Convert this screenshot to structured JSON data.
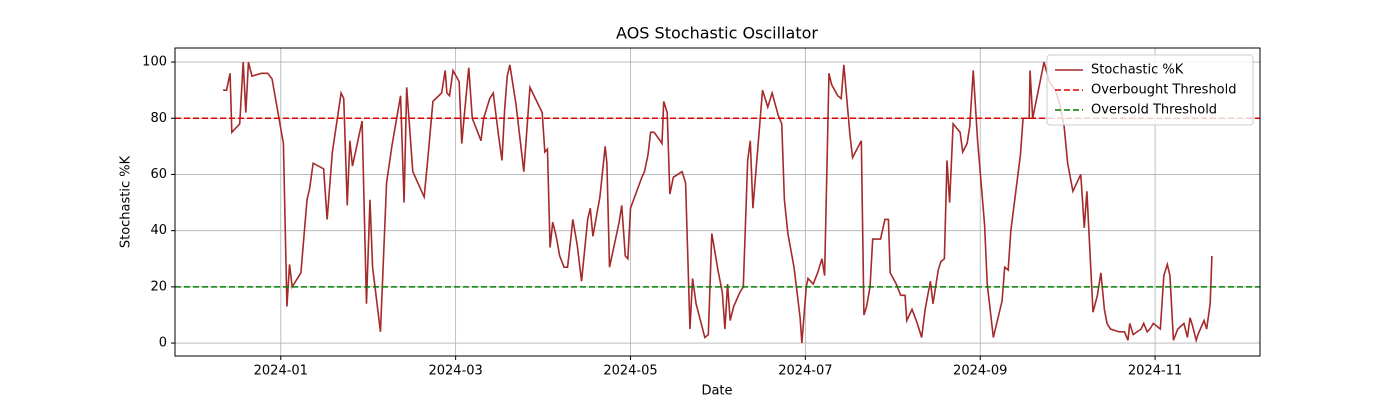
{
  "chart_data": {
    "type": "line",
    "title": "AOS Stochastic Oscillator",
    "x_label": "Date",
    "y_label": "Stochastic %K",
    "x": [
      -0.66,
      -0.62,
      -0.58,
      -0.56,
      -0.47,
      -0.43,
      -0.4,
      -0.37,
      -0.33,
      -0.22,
      -0.15,
      -0.1,
      0.03,
      0.07,
      0.1,
      0.13,
      0.23,
      0.3,
      0.33,
      0.37,
      0.49,
      0.53,
      0.59,
      0.69,
      0.72,
      0.76,
      0.79,
      0.82,
      0.93,
      0.98,
      1.02,
      1.05,
      1.14,
      1.21,
      1.27,
      1.37,
      1.41,
      1.44,
      1.51,
      1.64,
      1.68,
      1.74,
      1.84,
      1.88,
      1.9,
      1.93,
      1.97,
      2.04,
      2.07,
      2.09,
      2.15,
      2.19,
      2.29,
      2.32,
      2.39,
      2.43,
      2.49,
      2.53,
      2.56,
      2.59,
      2.62,
      2.69,
      2.78,
      2.85,
      2.99,
      3.02,
      3.05,
      3.08,
      3.11,
      3.15,
      3.19,
      3.24,
      3.28,
      3.32,
      3.34,
      3.39,
      3.44,
      3.51,
      3.54,
      3.57,
      3.65,
      3.71,
      3.73,
      3.76,
      3.87,
      3.9,
      3.94,
      3.97,
      4.0,
      4.13,
      4.16,
      4.2,
      4.23,
      4.27,
      4.34,
      4.36,
      4.38,
      4.42,
      4.45,
      4.49,
      4.59,
      4.63,
      4.68,
      4.71,
      4.75,
      4.85,
      4.89,
      4.93,
      5.0,
      5.05,
      5.08,
      5.11,
      5.14,
      5.18,
      5.25,
      5.29,
      5.34,
      5.37,
      5.4,
      5.51,
      5.57,
      5.62,
      5.69,
      5.73,
      5.76,
      5.8,
      5.87,
      5.94,
      5.96,
      6.01,
      6.03,
      6.09,
      6.14,
      6.19,
      6.22,
      6.27,
      6.3,
      6.37,
      6.41,
      6.44,
      6.51,
      6.54,
      6.64,
      6.67,
      6.7,
      6.74,
      6.77,
      6.86,
      6.91,
      6.95,
      6.97,
      7.04,
      7.09,
      7.14,
      7.16,
      7.22,
      7.28,
      7.33,
      7.37,
      7.43,
      7.46,
      7.52,
      7.55,
      7.59,
      7.62,
      7.65,
      7.69,
      7.77,
      7.8,
      7.85,
      7.88,
      7.92,
      7.97,
      8.05,
      8.08,
      8.15,
      8.25,
      8.28,
      8.32,
      8.35,
      8.46,
      8.49,
      8.56,
      8.57,
      8.6,
      8.73,
      8.79,
      8.86,
      8.91,
      8.96,
      9.0,
      9.06,
      9.15,
      9.19,
      9.22,
      9.29,
      9.34,
      9.38,
      9.42,
      9.45,
      9.49,
      9.59,
      9.65,
      9.69,
      9.71,
      9.75,
      9.84,
      9.87,
      9.91,
      9.94,
      9.98,
      10.06,
      10.1,
      10.14,
      10.17,
      10.21,
      10.26,
      10.33,
      10.37,
      10.4,
      10.43,
      10.47,
      10.49,
      10.56,
      10.59,
      10.63,
      10.65
    ],
    "series": [
      {
        "name": "Stochastic %K",
        "color": "#a52a2a",
        "values": [
          90,
          90,
          96,
          75,
          78,
          100,
          82,
          100,
          95,
          96,
          96,
          94,
          71,
          13,
          28,
          20,
          25,
          51,
          55,
          64,
          62,
          44,
          68,
          89,
          87,
          49,
          72,
          63,
          79,
          14,
          51,
          27,
          4,
          57,
          70,
          88,
          50,
          91,
          61,
          52,
          65,
          86,
          89,
          97,
          89,
          88,
          97,
          93,
          71,
          78,
          98,
          80,
          72,
          80,
          87,
          89,
          74,
          65,
          83,
          95,
          99,
          85,
          61,
          91,
          82,
          68,
          69,
          34,
          43,
          38,
          31,
          27,
          27,
          38,
          44,
          35,
          22,
          44,
          48,
          38,
          52,
          70,
          64,
          27,
          43,
          49,
          31,
          30,
          48,
          59,
          61,
          67,
          75,
          75,
          72,
          71,
          86,
          82,
          53,
          59,
          61,
          57,
          5,
          23,
          14,
          2,
          3,
          39,
          26,
          18,
          5,
          21,
          8,
          13,
          18,
          20,
          65,
          72,
          48,
          90,
          84,
          89,
          81,
          78,
          51,
          39,
          27,
          9,
          0,
          20,
          23,
          21,
          25,
          30,
          24,
          96,
          92,
          88,
          87,
          99,
          74,
          66,
          72,
          10,
          13,
          20,
          37,
          37,
          44,
          44,
          25,
          21,
          17,
          17,
          8,
          12,
          7,
          2,
          12,
          22,
          14,
          26,
          29,
          30,
          65,
          50,
          78,
          75,
          68,
          71,
          77,
          97,
          72,
          42,
          21,
          2,
          15,
          27,
          26,
          40,
          67,
          80,
          80,
          97,
          80,
          100,
          93,
          90,
          85,
          77,
          64,
          54,
          60,
          41,
          54,
          11,
          17,
          25,
          12,
          7,
          5,
          4,
          4,
          1,
          7,
          3,
          5,
          7,
          4,
          5,
          7,
          5,
          24,
          28,
          24,
          1,
          5,
          7,
          2,
          9,
          6,
          1,
          3,
          8,
          5,
          14,
          31
        ]
      }
    ],
    "hlines": [
      {
        "name": "Overbought Threshold",
        "value": 80,
        "color": "#e00000"
      },
      {
        "name": "Oversold Threshold",
        "value": 20,
        "color": "#008000"
      }
    ],
    "xlim": [
      -1.21,
      11.2
    ],
    "xticks": [
      {
        "value": 0,
        "label": "2024-01"
      },
      {
        "value": 2,
        "label": "2024-03"
      },
      {
        "value": 4,
        "label": "2024-05"
      },
      {
        "value": 6,
        "label": "2024-07"
      },
      {
        "value": 8,
        "label": "2024-09"
      },
      {
        "value": 10,
        "label": "2024-11"
      }
    ],
    "ylim": [
      -4.6,
      105
    ],
    "yticks": [
      0,
      20,
      40,
      60,
      80,
      100
    ],
    "grid": true,
    "legend": "upper-right"
  }
}
